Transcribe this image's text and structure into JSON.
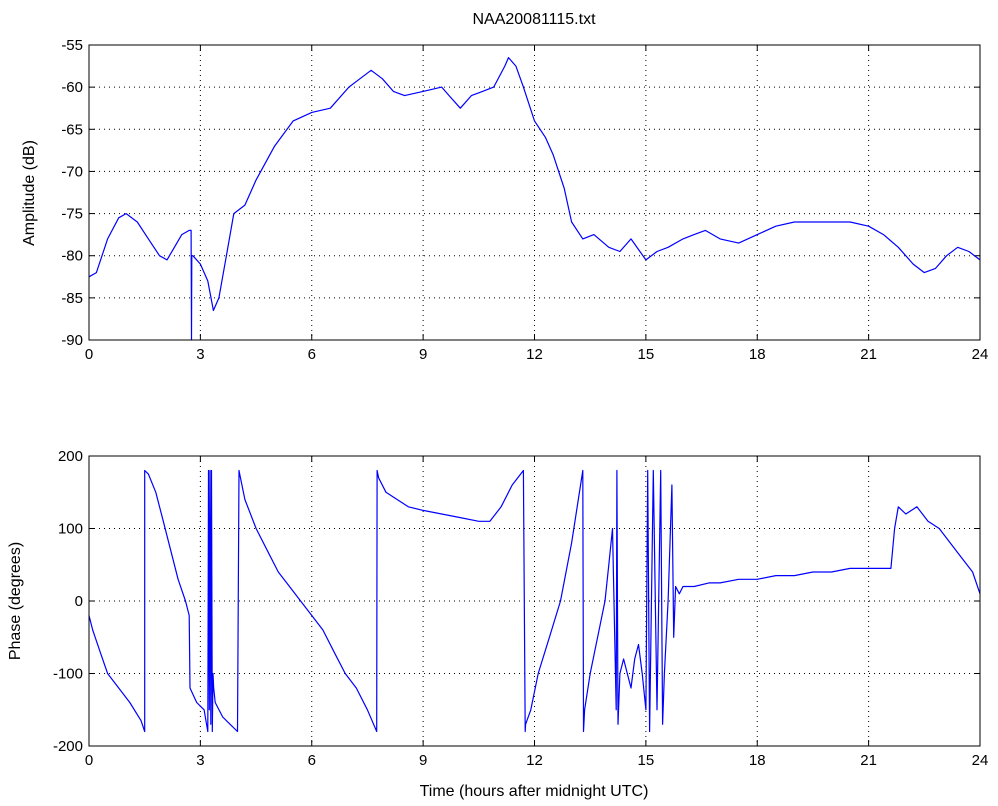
{
  "chart_data": [
    {
      "type": "line",
      "title": "NAA20081115.txt",
      "xlabel": "",
      "ylabel": "Amplitude (dB)",
      "xlim": [
        0,
        24
      ],
      "ylim": [
        -90,
        -55
      ],
      "xticks": [
        0,
        3,
        6,
        9,
        12,
        15,
        18,
        21,
        24
      ],
      "yticks": [
        -90,
        -85,
        -80,
        -75,
        -70,
        -65,
        -60,
        -55
      ],
      "grid": true,
      "color": "#0000ff",
      "series": [
        {
          "x": [
            0,
            0.2,
            0.5,
            0.8,
            1.0,
            1.3,
            1.6,
            1.9,
            2.1,
            2.3,
            2.5,
            2.7,
            2.75,
            2.76,
            2.77,
            2.8,
            3.0,
            3.2,
            3.35,
            3.5,
            3.7,
            3.9,
            4.2,
            4.5,
            5.0,
            5.5,
            6.0,
            6.5,
            7.0,
            7.3,
            7.6,
            7.9,
            8.2,
            8.5,
            9.0,
            9.5,
            9.7,
            10.0,
            10.3,
            10.6,
            10.9,
            11.2,
            11.3,
            11.5,
            11.7,
            12.0,
            12.3,
            12.5,
            12.8,
            13.0,
            13.3,
            13.6,
            14.0,
            14.3,
            14.6,
            15.0,
            15.3,
            15.6,
            16.0,
            16.3,
            16.6,
            17.0,
            17.5,
            18.0,
            18.5,
            19.0,
            19.5,
            20.0,
            20.5,
            21.0,
            21.4,
            21.8,
            22.2,
            22.5,
            22.8,
            23.1,
            23.4,
            23.7,
            24.0
          ],
          "y": [
            -82.5,
            -82,
            -78,
            -75.5,
            -75,
            -76,
            -78,
            -80,
            -80.5,
            -79,
            -77.5,
            -77,
            -77,
            -90,
            -80,
            -80,
            -81,
            -83,
            -86.5,
            -85,
            -80,
            -75,
            -74,
            -71,
            -67,
            -64,
            -63,
            -62.5,
            -60,
            -59,
            -58,
            -59,
            -60.5,
            -61,
            -60.5,
            -60,
            -61,
            -62.5,
            -61,
            -60.5,
            -60,
            -57.5,
            -56.5,
            -57.5,
            -60,
            -64,
            -66,
            -68,
            -72,
            -76,
            -78,
            -77.5,
            -79,
            -79.5,
            -78,
            -80.5,
            -79.5,
            -79,
            -78,
            -77.5,
            -77,
            -78,
            -78.5,
            -77.5,
            -76.5,
            -76,
            -76,
            -76,
            -76,
            -76.5,
            -77.5,
            -79,
            -81,
            -82,
            -81.5,
            -80,
            -79,
            -79.5,
            -80.5
          ]
        }
      ]
    },
    {
      "type": "line",
      "title": "",
      "xlabel": "Time (hours after midnight UTC)",
      "ylabel": "Phase (degrees)",
      "xlim": [
        0,
        24
      ],
      "ylim": [
        -200,
        200
      ],
      "xticks": [
        0,
        3,
        6,
        9,
        12,
        15,
        18,
        21,
        24
      ],
      "yticks": [
        -200,
        -100,
        0,
        100,
        200
      ],
      "grid": true,
      "color": "#0000ff",
      "series": [
        {
          "x": [
            0,
            0.1,
            0.3,
            0.5,
            0.8,
            1.1,
            1.4,
            1.5,
            1.5,
            1.6,
            1.8,
            2.0,
            2.2,
            2.4,
            2.6,
            2.7,
            2.72,
            2.9,
            3.1,
            3.2,
            3.22,
            3.24,
            3.26,
            3.28,
            3.3,
            3.32,
            3.34,
            3.36,
            3.4,
            3.6,
            3.8,
            4.0,
            4.04,
            4.06,
            4.2,
            4.5,
            4.8,
            5.1,
            5.4,
            5.7,
            6.0,
            6.3,
            6.6,
            6.9,
            7.2,
            7.5,
            7.75,
            7.76,
            7.8,
            8.0,
            8.3,
            8.6,
            9.0,
            9.5,
            10.0,
            10.5,
            10.8,
            11.1,
            11.4,
            11.7,
            11.75,
            11.76,
            11.9,
            12.1,
            12.4,
            12.7,
            13.0,
            13.3,
            13.32,
            13.35,
            13.5,
            13.7,
            13.9,
            14.0,
            14.1,
            14.2,
            14.22,
            14.25,
            14.3,
            14.4,
            14.5,
            14.6,
            14.7,
            14.8,
            14.9,
            15.0,
            15.05,
            15.1,
            15.2,
            15.3,
            15.4,
            15.45,
            15.5,
            15.6,
            15.7,
            15.75,
            15.8,
            15.9,
            16.0,
            16.3,
            16.7,
            17.0,
            17.5,
            18.0,
            18.5,
            19.0,
            19.5,
            20.0,
            20.5,
            21.0,
            21.3,
            21.6,
            21.7,
            21.8,
            22.0,
            22.3,
            22.6,
            22.9,
            23.2,
            23.5,
            23.8,
            24.0
          ],
          "y": [
            -20,
            -40,
            -70,
            -100,
            -120,
            -140,
            -165,
            -180,
            180,
            175,
            150,
            110,
            70,
            30,
            0,
            -20,
            -120,
            -140,
            -150,
            -180,
            180,
            -150,
            180,
            -170,
            180,
            -180,
            -100,
            -120,
            -140,
            -160,
            -170,
            -180,
            180,
            175,
            140,
            100,
            70,
            40,
            20,
            0,
            -20,
            -40,
            -70,
            -100,
            -120,
            -150,
            -180,
            180,
            170,
            150,
            140,
            130,
            125,
            120,
            115,
            110,
            110,
            130,
            160,
            180,
            -180,
            -170,
            -150,
            -100,
            -50,
            0,
            80,
            180,
            -180,
            -150,
            -100,
            -50,
            0,
            50,
            100,
            -150,
            180,
            -170,
            -100,
            -80,
            -100,
            -120,
            -80,
            -60,
            -100,
            -150,
            180,
            -180,
            180,
            -150,
            180,
            -170,
            -100,
            0,
            160,
            -50,
            20,
            10,
            20,
            20,
            25,
            25,
            30,
            30,
            35,
            35,
            40,
            40,
            45,
            45,
            45,
            45,
            100,
            130,
            120,
            130,
            110,
            100,
            80,
            60,
            40,
            10
          ]
        }
      ]
    }
  ]
}
